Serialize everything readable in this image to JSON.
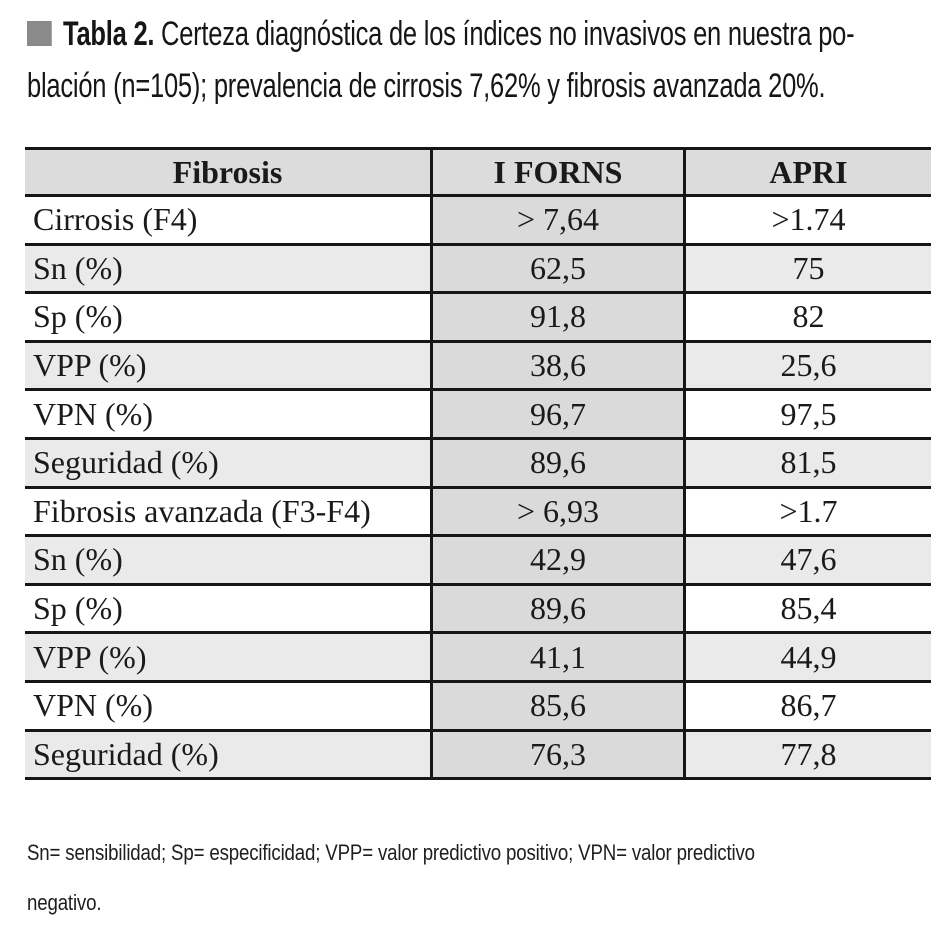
{
  "caption": {
    "marker_color": "#8a8a8a",
    "label": "Tabla 2.",
    "line1_rest": "Certeza diagnóstica de los índices no invasivos en nuestra po-",
    "line2": "blación (n=105); prevalencia de cirrosis 7,62% y fibrosis avanzada 20%."
  },
  "table": {
    "columns": [
      "Fibrosis",
      "I FORNS",
      "APRI"
    ],
    "rows": [
      {
        "label": "Cirrosis (F4)",
        "forns": "> 7,64",
        "apri": ">1.74"
      },
      {
        "label": "Sn (%)",
        "forns": "62,5",
        "apri": "75"
      },
      {
        "label": "Sp (%)",
        "forns": "91,8",
        "apri": "82"
      },
      {
        "label": "VPP (%)",
        "forns": "38,6",
        "apri": "25,6"
      },
      {
        "label": "VPN (%)",
        "forns": "96,7",
        "apri": "97,5"
      },
      {
        "label": "Seguridad (%)",
        "forns": "89,6",
        "apri": "81,5"
      },
      {
        "label": "Fibrosis avanzada (F3-F4)",
        "forns": "> 6,93",
        "apri": ">1.7"
      },
      {
        "label": "Sn (%)",
        "forns": "42,9",
        "apri": "47,6"
      },
      {
        "label": "Sp (%)",
        "forns": "89,6",
        "apri": "85,4"
      },
      {
        "label": "VPP (%)",
        "forns": "41,1",
        "apri": "44,9"
      },
      {
        "label": "VPN (%)",
        "forns": "85,6",
        "apri": "86,7"
      },
      {
        "label": "Seguridad (%)",
        "forns": "76,3",
        "apri": "77,8"
      }
    ]
  },
  "footnote": {
    "line1": "Sn= sensibilidad; Sp= especificidad; VPP= valor predictivo positivo; VPN= valor predictivo",
    "line2": "negativo."
  },
  "colors": {
    "header_bg": "#dcdcdc",
    "forns_column_bg": "#dadada",
    "row_stripe_bg": "#eaeaea",
    "rule": "#161616",
    "marker": "#8a8a8a"
  }
}
